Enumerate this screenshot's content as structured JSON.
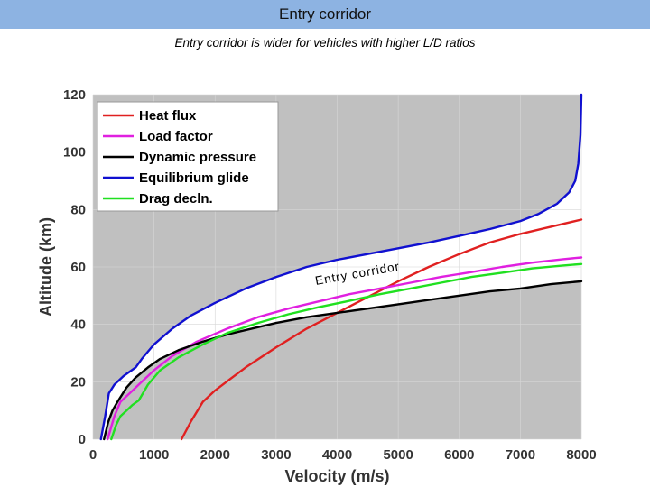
{
  "slide": {
    "title": "Entry corridor",
    "subtitle": "Entry corridor is wider for vehicles with higher L/D ratios"
  },
  "chart_data": {
    "type": "line",
    "xlabel": "Velocity (m/s)",
    "ylabel": "Altitude (km)",
    "xlim": [
      0,
      8000
    ],
    "ylim": [
      0,
      120
    ],
    "xticks": [
      0,
      1000,
      2000,
      3000,
      4000,
      5000,
      6000,
      7000,
      8000
    ],
    "yticks": [
      0,
      20,
      40,
      60,
      80,
      100,
      120
    ],
    "grid": true,
    "legend_position": "top-left",
    "background_color": "#c0c0c0",
    "corridor_color": "#ffffff",
    "corridor_annotation": "Entry corridor",
    "series": [
      {
        "name": "Heat flux",
        "color": "#e02020",
        "x": [
          1450,
          1600,
          1800,
          2000,
          2500,
          3000,
          3500,
          4000,
          4500,
          5000,
          5500,
          6000,
          6500,
          7000,
          7500,
          8000
        ],
        "y": [
          0,
          6,
          13,
          17,
          25,
          32,
          38.5,
          44,
          49.5,
          55,
          60,
          64.5,
          68.5,
          71.5,
          74,
          76.5
        ]
      },
      {
        "name": "Load factor",
        "color": "#e020e0",
        "x": [
          240,
          350,
          450,
          600,
          800,
          1000,
          1300,
          1700,
          2200,
          2700,
          3200,
          3700,
          4200,
          4700,
          5200,
          5700,
          6200,
          6700,
          7200,
          7700,
          8000
        ],
        "y": [
          0,
          8,
          13,
          16,
          20,
          24,
          29,
          34,
          38.5,
          42.5,
          45.5,
          48,
          50.5,
          52.5,
          54.5,
          56.5,
          58.2,
          60,
          61.5,
          62.7,
          63.3
        ]
      },
      {
        "name": "Dynamic pressure",
        "color": "#000000",
        "x": [
          180,
          250,
          320,
          400,
          550,
          700,
          900,
          1100,
          1400,
          1800,
          2200,
          2600,
          3000,
          3500,
          4000,
          4500,
          5000,
          5500,
          6000,
          6500,
          7000,
          7500,
          8000
        ],
        "y": [
          0,
          6,
          10,
          13,
          18,
          21.5,
          25,
          28,
          31,
          34,
          36.5,
          38.5,
          40.5,
          42.5,
          44,
          45.5,
          47,
          48.5,
          50,
          51.5,
          52.5,
          54,
          55
        ]
      },
      {
        "name": "Equilibrium glide",
        "color": "#1010d0",
        "x": [
          130,
          200,
          260,
          350,
          500,
          700,
          800,
          1000,
          1300,
          1600,
          2000,
          2500,
          3000,
          3500,
          4000,
          4500,
          5000,
          5500,
          6000,
          6500,
          7000,
          7300,
          7600,
          7800,
          7900,
          7950,
          7985,
          8000
        ],
        "y": [
          0,
          8,
          16,
          19,
          22,
          25,
          28,
          33,
          38.5,
          43,
          47.5,
          52.5,
          56.5,
          60,
          62.5,
          64.5,
          66.5,
          68.5,
          70.8,
          73.2,
          76,
          78.5,
          82,
          86,
          90,
          96,
          106,
          120
        ]
      },
      {
        "name": "Drag decln.",
        "color": "#20e020",
        "x": [
          300,
          380,
          450,
          550,
          650,
          750,
          900,
          1100,
          1400,
          1800,
          2200,
          2700,
          3200,
          3700,
          4200,
          4700,
          5200,
          5700,
          6200,
          6700,
          7200,
          7700,
          8000
        ],
        "y": [
          0,
          5,
          8,
          10,
          12,
          13.5,
          19,
          24,
          28.5,
          33,
          37,
          40.5,
          43.5,
          46,
          48.2,
          50.5,
          52.5,
          54.5,
          56.5,
          58,
          59.5,
          60.5,
          61
        ]
      }
    ]
  }
}
